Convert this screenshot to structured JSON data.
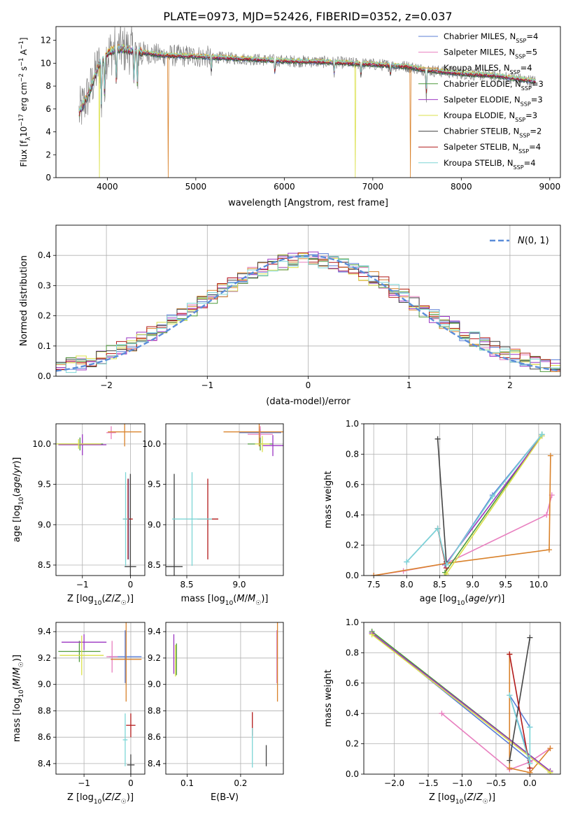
{
  "figure": {
    "title": "PLATE=0973, MJD=52426, FIBERID=0352, z=0.037"
  },
  "models": [
    {
      "key": "chabrier_miles",
      "label": "Chabrier MILES, N",
      "nssp": "=4",
      "color": "#5b7fd6"
    },
    {
      "key": "salpeter_miles",
      "label": "Salpeter MILES, N",
      "nssp": "=5",
      "color": "#e87fbf"
    },
    {
      "key": "kroupa_miles",
      "label": "Kroupa MILES, N",
      "nssp": "=4",
      "color": "#d9822b"
    },
    {
      "key": "chabrier_elodie",
      "label": "Chabrier ELODIE, N",
      "nssp": "=3",
      "color": "#4f9a3c"
    },
    {
      "key": "salpeter_elodie",
      "label": "Salpeter ELODIE, N",
      "nssp": "=3",
      "color": "#9b36c2"
    },
    {
      "key": "kroupa_elodie",
      "label": "Kroupa ELODIE, N",
      "nssp": "=3",
      "color": "#dbe04a"
    },
    {
      "key": "chabrier_stelib",
      "label": "Chabrier STELIB, N",
      "nssp": "=2",
      "color": "#444444"
    },
    {
      "key": "salpeter_stelib",
      "label": "Salpeter STELIB, N",
      "nssp": "=4",
      "color": "#b21a1a"
    },
    {
      "key": "kroupa_stelib",
      "label": "Kroupa STELIB, N",
      "nssp": "=4",
      "color": "#7dd6d6"
    }
  ],
  "chart_data": [
    {
      "id": "spectrum",
      "type": "line",
      "xlabel": "wavelength [Angstrom, rest frame]",
      "ylabel_pre": "Flux [f",
      "ylabel_mid": "10",
      "ylabel_exp": "−17",
      "ylabel_post": " erg cm",
      "ylabel_exp2": "−2",
      "ylabel_s": " s",
      "ylabel_exp3": "−1",
      "ylabel_a": " A",
      "ylabel_exp4": "−1",
      "ylabel_end": "]",
      "xlim": [
        3420,
        9120
      ],
      "ylim": [
        0,
        13.2
      ],
      "xticks": [
        4000,
        5000,
        6000,
        7000,
        8000,
        9000
      ],
      "yticks": [
        0,
        2,
        4,
        6,
        8,
        10,
        12
      ],
      "data_color": "#808080",
      "data_range": [
        3680,
        8840
      ],
      "continuum": {
        "x": [
          3680,
          3800,
          3900,
          4000,
          4100,
          4300,
          4600,
          5000,
          5500,
          6000,
          6500,
          7000,
          7400,
          7600,
          8000,
          8400,
          8840
        ],
        "y": [
          5.6,
          7.5,
          9.8,
          10.8,
          11.3,
          11.1,
          10.7,
          10.6,
          10.4,
          10.2,
          10.1,
          9.9,
          9.7,
          9.4,
          9.1,
          8.9,
          8.4
        ]
      },
      "absorption_lines": [
        {
          "x": 3934,
          "depth": 0.45
        },
        {
          "x": 3969,
          "depth": 0.35
        },
        {
          "x": 4102,
          "depth": 0.3
        },
        {
          "x": 4304,
          "depth": 0.25
        },
        {
          "x": 4340,
          "depth": 0.3
        },
        {
          "x": 5175,
          "depth": 0.15
        },
        {
          "x": 5894,
          "depth": 0.12
        },
        {
          "x": 6563,
          "depth": 0.1
        },
        {
          "x": 6867,
          "depth": 0.12
        },
        {
          "x": 7200,
          "depth": 0.08
        },
        {
          "x": 7605,
          "depth": 0.25
        }
      ],
      "model_dropouts": [
        {
          "x": 3910,
          "model": "kroupa_elodie"
        },
        {
          "x": 4690,
          "model": "kroupa_miles"
        },
        {
          "x": 6800,
          "model": "kroupa_elodie"
        },
        {
          "x": 7425,
          "model": "kroupa_miles"
        }
      ],
      "legend_suffix": "SSP"
    },
    {
      "id": "residual_hist",
      "type": "histogram",
      "xlabel": "(data-model)/error",
      "ylabel": "Normed distribution",
      "xlim": [
        -2.5,
        2.5
      ],
      "ylim": [
        0,
        0.5
      ],
      "xticks": [
        -2,
        -1,
        0,
        1,
        2
      ],
      "yticks": [
        0.0,
        0.1,
        0.2,
        0.3,
        0.4
      ],
      "bin_width": 0.1,
      "reference": {
        "name": "N(0,1)",
        "mean": 0,
        "sigma": 1,
        "color": "#5b8dd9"
      }
    },
    {
      "id": "age_vs_z",
      "type": "scatter",
      "xlabel": "Z [log10(Z/Z☉)]",
      "ylabel": "age  [log10(age/yr)]",
      "xlim": [
        -1.55,
        0.3
      ],
      "ylim": [
        8.37,
        10.25
      ],
      "xticks": [
        -1,
        0
      ],
      "yticks": [
        8.5,
        9.0,
        9.5,
        10.0
      ],
      "points": [
        {
          "model": "chabrier_miles",
          "x": -0.04,
          "y": 9.07,
          "xe": 0.05,
          "ye": 0.5
        },
        {
          "model": "salpeter_miles",
          "x": -0.4,
          "y": 10.14,
          "xe": 0.1,
          "ye": 0.08
        },
        {
          "model": "kroupa_miles",
          "x": -0.12,
          "y": 10.15,
          "xe": 0.35,
          "ye": 0.18
        },
        {
          "model": "chabrier_elodie",
          "x": -1.05,
          "y": 10.0,
          "xe": 0.48,
          "ye": 0.08
        },
        {
          "model": "salpeter_elodie",
          "x": -1.0,
          "y": 9.99,
          "xe": 0.5,
          "ye": 0.13
        },
        {
          "model": "kroupa_elodie",
          "x": -1.08,
          "y": 10.0,
          "xe": 0.47,
          "ye": 0.06
        },
        {
          "model": "chabrier_stelib",
          "x": 0.0,
          "y": 8.48,
          "xe": 0.12,
          "ye": 1.15
        },
        {
          "model": "salpeter_stelib",
          "x": -0.05,
          "y": 9.07,
          "xe": 0.1,
          "ye": 0.5
        },
        {
          "model": "kroupa_stelib",
          "x": -0.1,
          "y": 9.07,
          "xe": 0.06,
          "ye": 0.58
        }
      ]
    },
    {
      "id": "age_vs_mass",
      "type": "scatter",
      "xlabel": "mass [log10(M/M☉)]",
      "xlim": [
        8.3,
        9.42
      ],
      "ylim": [
        8.37,
        10.25
      ],
      "xticks": [
        8.5,
        9.0
      ],
      "yticks": [
        8.5,
        9.0,
        9.5,
        10.0
      ],
      "points": [
        {
          "model": "chabrier_miles",
          "x": 9.2,
          "y": 10.14,
          "xe": 0.2,
          "ye": 0.05
        },
        {
          "model": "salpeter_miles",
          "x": 9.2,
          "y": 10.12,
          "xe": 0.12,
          "ye": 0.1
        },
        {
          "model": "kroupa_miles",
          "x": 9.19,
          "y": 10.15,
          "xe": 0.34,
          "ye": 0.18
        },
        {
          "model": "chabrier_elodie",
          "x": 9.2,
          "y": 10.0,
          "xe": 0.12,
          "ye": 0.08
        },
        {
          "model": "salpeter_elodie",
          "x": 9.32,
          "y": 9.98,
          "xe": 0.1,
          "ye": 0.13
        },
        {
          "model": "kroupa_elodie",
          "x": 9.22,
          "y": 10.0,
          "xe": 0.07,
          "ye": 0.1
        },
        {
          "model": "chabrier_stelib",
          "x": 8.38,
          "y": 8.48,
          "xe": 0.08,
          "ye": 1.15
        },
        {
          "model": "salpeter_stelib",
          "x": 8.7,
          "y": 9.07,
          "xe": 0.1,
          "ye": 0.5
        },
        {
          "model": "kroupa_stelib",
          "x": 8.55,
          "y": 9.07,
          "xe": 0.19,
          "ye": 0.58
        }
      ]
    },
    {
      "id": "weight_vs_age",
      "type": "line",
      "xlabel": "age  [log10(age/yr)]",
      "ylabel": "mass weight",
      "xlim": [
        7.35,
        10.33
      ],
      "ylim": [
        0,
        1.0
      ],
      "xticks": [
        7.5,
        8.0,
        8.5,
        9.0,
        9.5,
        10.0
      ],
      "yticks": [
        0.0,
        0.2,
        0.4,
        0.6,
        0.8,
        1.0
      ],
      "series": [
        {
          "model": "chabrier_miles",
          "x": [
            8.0,
            8.47,
            8.6,
            9.3,
            10.05
          ],
          "y": [
            0.09,
            0.31,
            0.07,
            0.53,
            0.93
          ]
        },
        {
          "model": "salpeter_miles",
          "x": [
            7.5,
            7.95,
            8.6,
            10.12,
            10.2
          ],
          "y": [
            0.0,
            0.03,
            0.08,
            0.4,
            0.53
          ]
        },
        {
          "model": "kroupa_miles",
          "x": [
            7.5,
            8.6,
            10.16,
            10.18
          ],
          "y": [
            0.0,
            0.08,
            0.17,
            0.79
          ]
        },
        {
          "model": "chabrier_elodie",
          "x": [
            8.58,
            10.05
          ],
          "y": [
            0.02,
            0.93
          ]
        },
        {
          "model": "salpeter_elodie",
          "x": [
            8.58,
            10.05
          ],
          "y": [
            0.07,
            0.92
          ]
        },
        {
          "model": "kroupa_elodie",
          "x": [
            8.6,
            10.05
          ],
          "y": [
            0.01,
            0.92
          ]
        },
        {
          "model": "chabrier_stelib",
          "x": [
            8.47,
            8.6
          ],
          "y": [
            0.9,
            0.09
          ]
        },
        {
          "model": "salpeter_stelib",
          "x": [
            8.47,
            8.6
          ],
          "y": [
            0.31,
            0.05
          ]
        },
        {
          "model": "kroupa_stelib",
          "x": [
            8.0,
            8.47,
            8.6,
            9.3,
            10.05
          ],
          "y": [
            0.09,
            0.31,
            0.07,
            0.52,
            0.93
          ]
        }
      ]
    },
    {
      "id": "mass_vs_z",
      "type": "scatter",
      "xlabel": "Z [log10(Z/Z☉)]",
      "ylabel": "mass [log10(M/M☉)]",
      "xlim": [
        -1.6,
        0.3
      ],
      "ylim": [
        8.32,
        9.47
      ],
      "xticks": [
        -1,
        0
      ],
      "yticks": [
        8.4,
        8.6,
        8.8,
        9.0,
        9.2,
        9.4
      ],
      "points": [
        {
          "model": "chabrier_miles",
          "x": -0.12,
          "y": 9.21,
          "xe": 0.35,
          "ye": 0.2
        },
        {
          "model": "salpeter_miles",
          "x": -0.4,
          "y": 9.21,
          "xe": 0.12,
          "ye": 0.12
        },
        {
          "model": "kroupa_miles",
          "x": -0.1,
          "y": 9.19,
          "xe": 0.33,
          "ye": 0.32
        },
        {
          "model": "chabrier_elodie",
          "x": -1.1,
          "y": 9.25,
          "xe": 0.45,
          "ye": 0.08
        },
        {
          "model": "salpeter_elodie",
          "x": -1.0,
          "y": 9.32,
          "xe": 0.48,
          "ye": 0.06
        },
        {
          "model": "kroupa_elodie",
          "x": -1.05,
          "y": 9.22,
          "xe": 0.47,
          "ye": 0.15
        },
        {
          "model": "chabrier_stelib",
          "x": 0.0,
          "y": 8.39,
          "xe": 0.08,
          "ye": 0.08
        },
        {
          "model": "salpeter_stelib",
          "x": 0.0,
          "y": 8.69,
          "xe": 0.1,
          "ye": 0.09
        },
        {
          "model": "kroupa_stelib",
          "x": -0.12,
          "y": 8.58,
          "xe": 0.05,
          "ye": 0.2
        }
      ]
    },
    {
      "id": "mass_vs_ebv",
      "type": "scatter",
      "xlabel": "E(B-V)",
      "xlim": [
        0.06,
        0.28
      ],
      "ylim": [
        8.32,
        9.47
      ],
      "xticks": [
        0.1,
        0.2
      ],
      "yticks": [
        8.4,
        8.6,
        8.8,
        9.0,
        9.2,
        9.4
      ],
      "points": [
        {
          "model": "chabrier_miles",
          "x": 0.268,
          "y": 9.21,
          "xe": 0,
          "ye": 0.2
        },
        {
          "model": "salpeter_miles",
          "x": 0.268,
          "y": 9.21,
          "xe": 0,
          "ye": 0.2
        },
        {
          "model": "kroupa_miles",
          "x": 0.269,
          "y": 9.19,
          "xe": 0,
          "ye": 0.32
        },
        {
          "model": "chabrier_elodie",
          "x": 0.08,
          "y": 9.19,
          "xe": 0,
          "ye": 0.12
        },
        {
          "model": "salpeter_elodie",
          "x": 0.075,
          "y": 9.23,
          "xe": 0,
          "ye": 0.15
        },
        {
          "model": "kroupa_elodie",
          "x": 0.078,
          "y": 9.18,
          "xe": 0,
          "ye": 0.12
        },
        {
          "model": "chabrier_stelib",
          "x": 0.248,
          "y": 8.46,
          "xe": 0,
          "ye": 0.08
        },
        {
          "model": "salpeter_stelib",
          "x": 0.222,
          "y": 8.7,
          "xe": 0,
          "ye": 0.09
        },
        {
          "model": "kroupa_stelib",
          "x": 0.222,
          "y": 8.52,
          "xe": 0,
          "ye": 0.15
        }
      ]
    },
    {
      "id": "weight_vs_z",
      "type": "line",
      "xlabel": "Z [log10(Z/Z☉)]",
      "ylabel": "mass weight",
      "xlim": [
        -2.45,
        0.45
      ],
      "ylim": [
        0,
        1.0
      ],
      "xticks": [
        -2.0,
        -1.5,
        -1.0,
        -0.5,
        0.0
      ],
      "yticks": [
        0.0,
        0.2,
        0.4,
        0.6,
        0.8,
        1.0
      ],
      "series": [
        {
          "model": "chabrier_miles",
          "x": [
            -2.33,
            0.0,
            -0.3,
            0.0
          ],
          "y": [
            0.93,
            0.09,
            0.52,
            0.31
          ]
        },
        {
          "model": "salpeter_miles",
          "x": [
            -1.3,
            -0.3,
            0.0,
            0.3
          ],
          "y": [
            0.4,
            0.03,
            0.08,
            0.17
          ]
        },
        {
          "model": "kroupa_miles",
          "x": [
            -0.3,
            -0.3,
            0.0,
            0.3
          ],
          "y": [
            0.79,
            0.04,
            0.01,
            0.17
          ]
        },
        {
          "model": "chabrier_elodie",
          "x": [
            -2.33,
            0.3
          ],
          "y": [
            0.94,
            0.02
          ]
        },
        {
          "model": "salpeter_elodie",
          "x": [
            -2.33,
            0.3
          ],
          "y": [
            0.93,
            0.02
          ]
        },
        {
          "model": "kroupa_elodie",
          "x": [
            -2.33,
            0.3
          ],
          "y": [
            0.92,
            0.01
          ]
        },
        {
          "model": "chabrier_stelib",
          "x": [
            -0.3,
            0.0
          ],
          "y": [
            0.09,
            0.9
          ]
        },
        {
          "model": "salpeter_stelib",
          "x": [
            -0.3,
            0.0
          ],
          "y": [
            0.79,
            0.04
          ]
        },
        {
          "model": "kroupa_stelib",
          "x": [
            -0.3,
            0.0,
            0.0
          ],
          "y": [
            0.52,
            0.07,
            0.31
          ]
        }
      ]
    }
  ]
}
